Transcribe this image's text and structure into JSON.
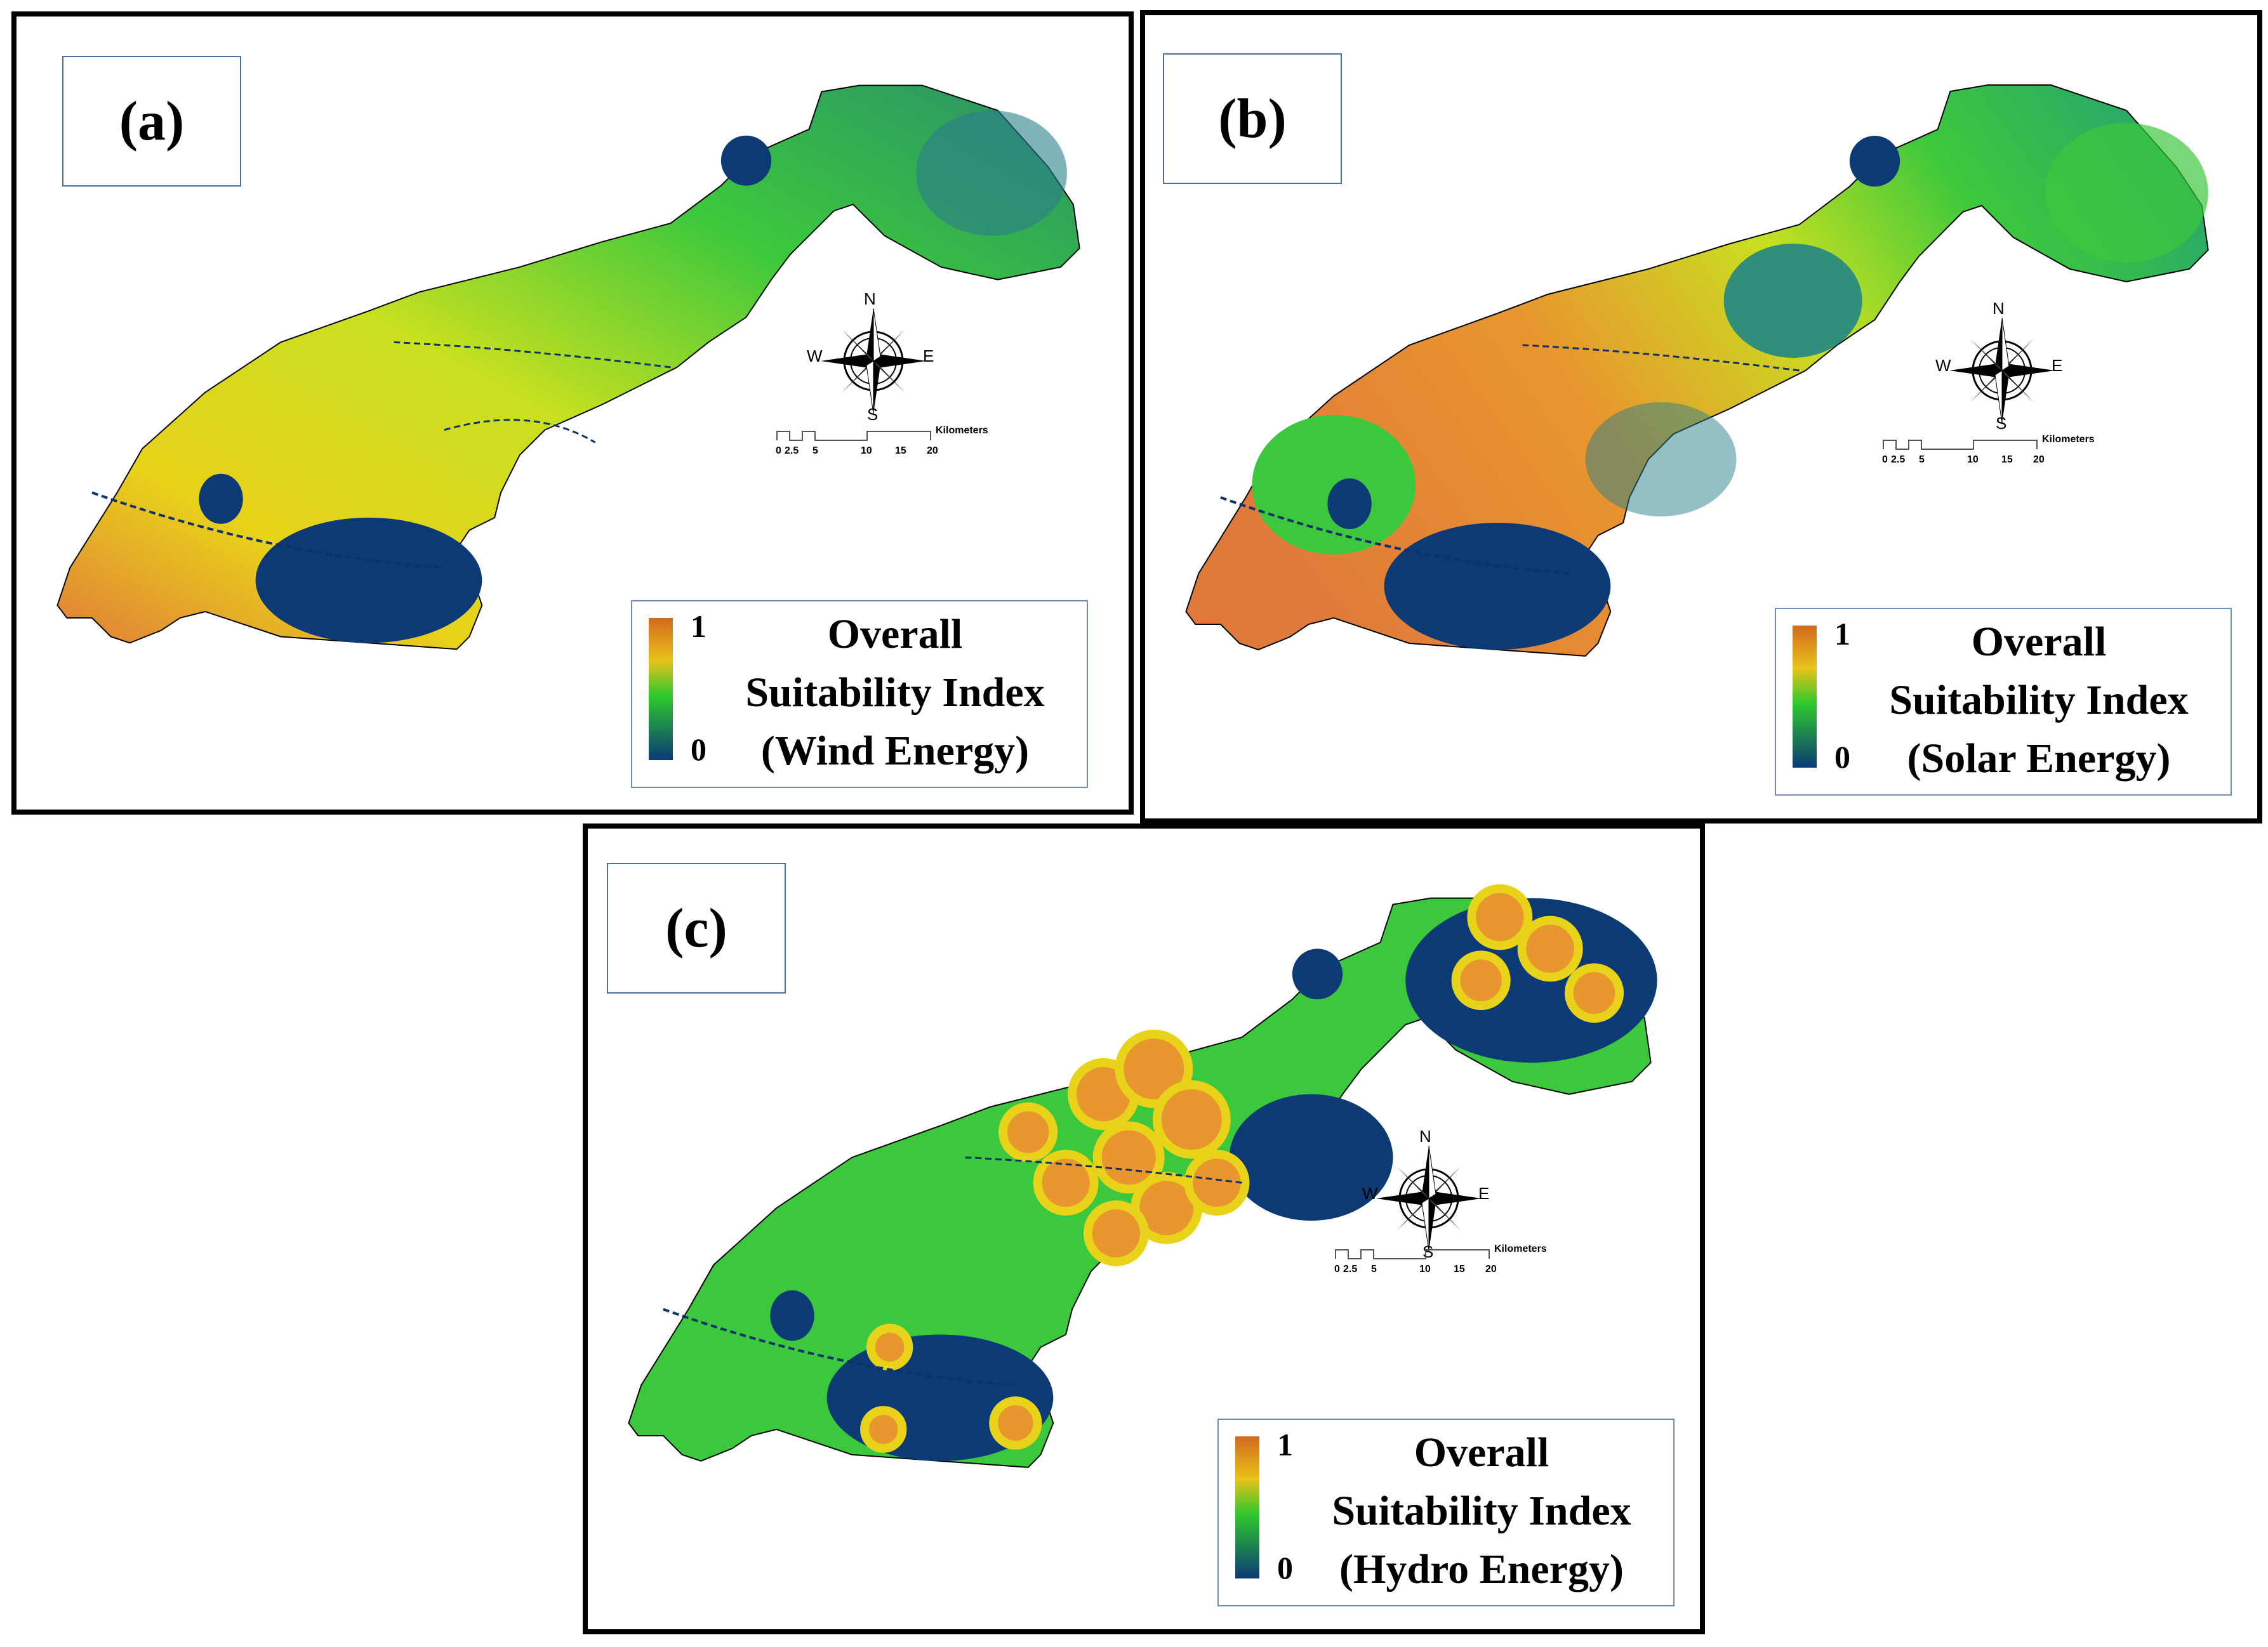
{
  "panels": [
    {
      "label": "(a)",
      "legend": {
        "max": "1",
        "min": "0",
        "line1": "Overall",
        "line2": "Suitability Index",
        "line3": "(Wind Energy)"
      }
    },
    {
      "label": "(b)",
      "legend": {
        "max": "1",
        "min": "0",
        "line1": "Overall",
        "line2": "Suitability Index",
        "line3": "(Solar Energy)"
      }
    },
    {
      "label": "(c)",
      "legend": {
        "max": "1",
        "min": "0",
        "line1": "Overall",
        "line2": "Suitability Index",
        "line3": "(Hydro Energy)"
      }
    }
  ],
  "compass": {
    "n": "N",
    "s": "S",
    "e": "E",
    "w": "W"
  },
  "scale": {
    "unit": "Kilometers",
    "ticks": [
      "0",
      "2.5",
      "5",
      "10",
      "15",
      "20"
    ]
  },
  "colors": {
    "high": "#d2691e",
    "mid_high": "#e6e619",
    "mid": "#2ec82e",
    "low": "#0b3a75"
  }
}
